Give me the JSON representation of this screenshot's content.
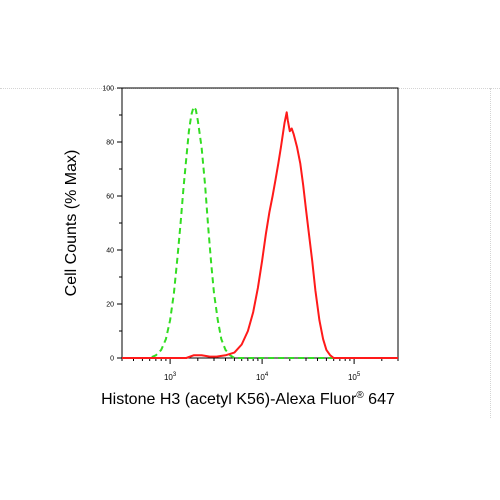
{
  "chart_data": {
    "type": "line",
    "title": "",
    "xlabel": "Histone H3 (acetyl K56)-Alexa Fluor",
    "xlabel_superscript": "®",
    "xlabel_suffix": " 647",
    "ylabel": "Cell Counts (% Max)",
    "x_scale": "log",
    "xlim": [
      300,
      300000
    ],
    "ylim": [
      0,
      100
    ],
    "x_ticks": [
      {
        "value": 1000,
        "base": "10",
        "exp": "3"
      },
      {
        "value": 10000,
        "base": "10",
        "exp": "4"
      },
      {
        "value": 100000,
        "base": "10",
        "exp": "5"
      }
    ],
    "y_ticks": [
      {
        "value": 0,
        "label": "0"
      },
      {
        "value": 20,
        "label": "20"
      },
      {
        "value": 40,
        "label": "40"
      },
      {
        "value": 60,
        "label": "60"
      },
      {
        "value": 80,
        "label": "80"
      },
      {
        "value": 100,
        "label": "100"
      }
    ],
    "grid": false,
    "legend": "none",
    "series": [
      {
        "style": "dashed",
        "color": "#33dd22",
        "points": [
          [
            300,
            0
          ],
          [
            600,
            0
          ],
          [
            700,
            1
          ],
          [
            800,
            3
          ],
          [
            900,
            7
          ],
          [
            1000,
            14
          ],
          [
            1100,
            24
          ],
          [
            1200,
            37
          ],
          [
            1300,
            50
          ],
          [
            1400,
            63
          ],
          [
            1500,
            74
          ],
          [
            1600,
            84
          ],
          [
            1700,
            90
          ],
          [
            1800,
            93
          ],
          [
            1900,
            92
          ],
          [
            2000,
            88
          ],
          [
            2200,
            78
          ],
          [
            2400,
            64
          ],
          [
            2600,
            48
          ],
          [
            2800,
            35
          ],
          [
            3000,
            24
          ],
          [
            3300,
            14
          ],
          [
            3600,
            7
          ],
          [
            4000,
            3
          ],
          [
            4500,
            1
          ],
          [
            5000,
            0
          ],
          [
            300000,
            0
          ]
        ]
      },
      {
        "style": "solid",
        "color": "#ff1a1a",
        "points": [
          [
            300,
            0
          ],
          [
            1500,
            0
          ],
          [
            1800,
            1
          ],
          [
            2200,
            1
          ],
          [
            2700,
            0.5
          ],
          [
            3200,
            0.5
          ],
          [
            4000,
            1
          ],
          [
            5000,
            2
          ],
          [
            6000,
            5
          ],
          [
            7000,
            10
          ],
          [
            8000,
            17
          ],
          [
            9000,
            26
          ],
          [
            10000,
            36
          ],
          [
            11000,
            46
          ],
          [
            12000,
            54
          ],
          [
            13000,
            60
          ],
          [
            14000,
            66
          ],
          [
            15000,
            72
          ],
          [
            16000,
            78
          ],
          [
            17000,
            84
          ],
          [
            17500,
            87
          ],
          [
            18000,
            89
          ],
          [
            18500,
            91
          ],
          [
            19000,
            88
          ],
          [
            20000,
            84
          ],
          [
            21000,
            85
          ],
          [
            22000,
            83
          ],
          [
            24000,
            78
          ],
          [
            26000,
            72
          ],
          [
            28000,
            64
          ],
          [
            30000,
            55
          ],
          [
            32000,
            47
          ],
          [
            35000,
            36
          ],
          [
            38000,
            25
          ],
          [
            42000,
            14
          ],
          [
            46000,
            7
          ],
          [
            50000,
            3
          ],
          [
            55000,
            1
          ],
          [
            60000,
            0
          ],
          [
            300000,
            0
          ]
        ]
      }
    ]
  }
}
